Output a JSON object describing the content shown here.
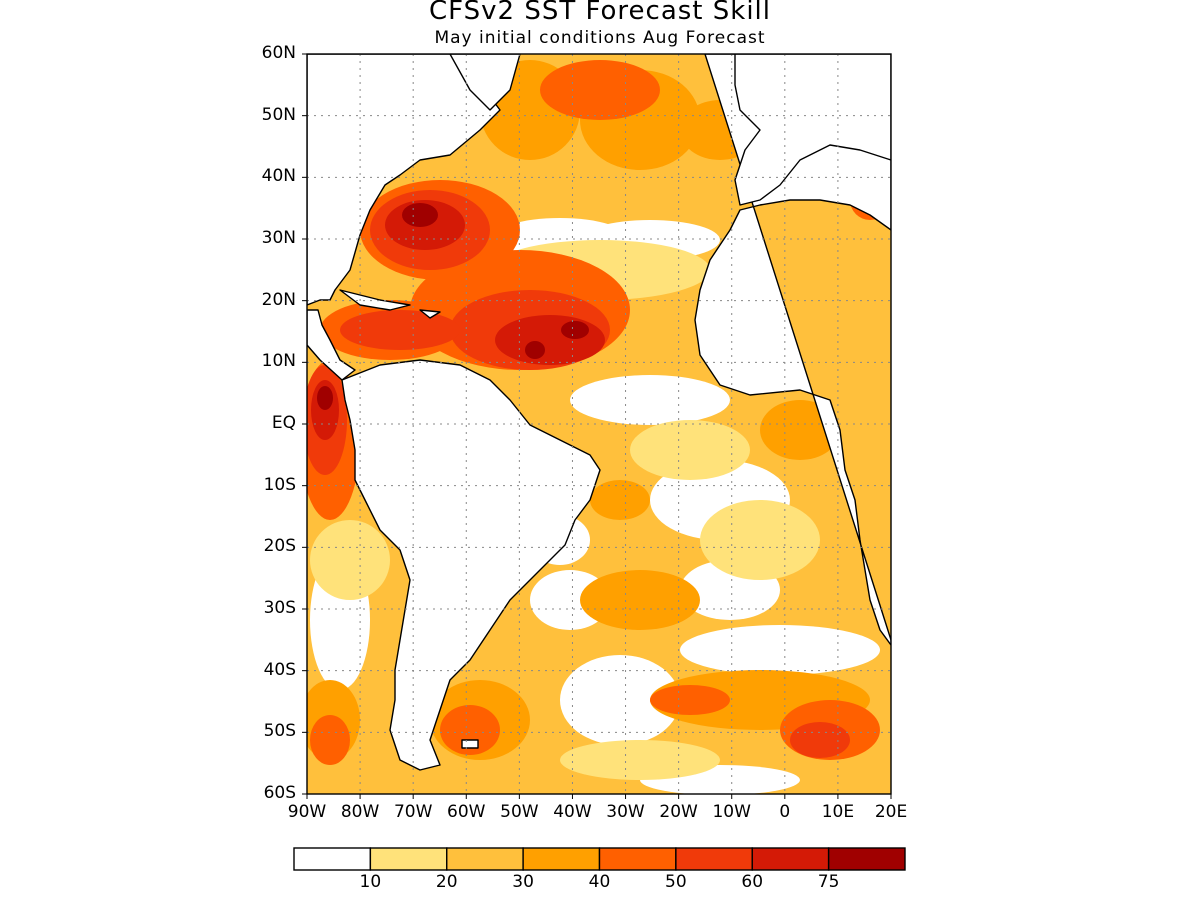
{
  "header": {
    "title": "CFSv2 SST Forecast Skill",
    "subtitle": "May initial conditions   Aug Forecast"
  },
  "map": {
    "lon_range": [
      -90,
      20
    ],
    "lat_range": [
      -60,
      60
    ],
    "lat_ticks": [
      {
        "value": 60,
        "label": "60N"
      },
      {
        "value": 50,
        "label": "50N"
      },
      {
        "value": 40,
        "label": "40N"
      },
      {
        "value": 30,
        "label": "30N"
      },
      {
        "value": 20,
        "label": "20N"
      },
      {
        "value": 10,
        "label": "10N"
      },
      {
        "value": 0,
        "label": "EQ"
      },
      {
        "value": -10,
        "label": "10S"
      },
      {
        "value": -20,
        "label": "20S"
      },
      {
        "value": -30,
        "label": "30S"
      },
      {
        "value": -40,
        "label": "40S"
      },
      {
        "value": -50,
        "label": "50S"
      },
      {
        "value": -60,
        "label": "60S"
      }
    ],
    "lon_ticks": [
      {
        "value": -90,
        "label": "90W"
      },
      {
        "value": -80,
        "label": "80W"
      },
      {
        "value": -70,
        "label": "70W"
      },
      {
        "value": -60,
        "label": "60W"
      },
      {
        "value": -50,
        "label": "50W"
      },
      {
        "value": -40,
        "label": "40W"
      },
      {
        "value": -30,
        "label": "30W"
      },
      {
        "value": -20,
        "label": "20W"
      },
      {
        "value": -10,
        "label": "10W"
      },
      {
        "value": 0,
        "label": "0"
      },
      {
        "value": 10,
        "label": "10E"
      },
      {
        "value": 20,
        "label": "20E"
      }
    ],
    "grid": true
  },
  "colorbar": {
    "colors": [
      "#ffffff",
      "#ffe27a",
      "#ffc03c",
      "#ffa000",
      "#ff6000",
      "#f03a0a",
      "#d41a06",
      "#a00000"
    ],
    "labels": [
      "10",
      "20",
      "30",
      "40",
      "50",
      "60",
      "75"
    ]
  },
  "colors": {
    "c10": "#ffe27a",
    "c20": "#ffc03c",
    "c30": "#ffa000",
    "c40": "#ff6000",
    "c50": "#f03a0a",
    "c60": "#d41a06",
    "c75": "#a00000"
  }
}
